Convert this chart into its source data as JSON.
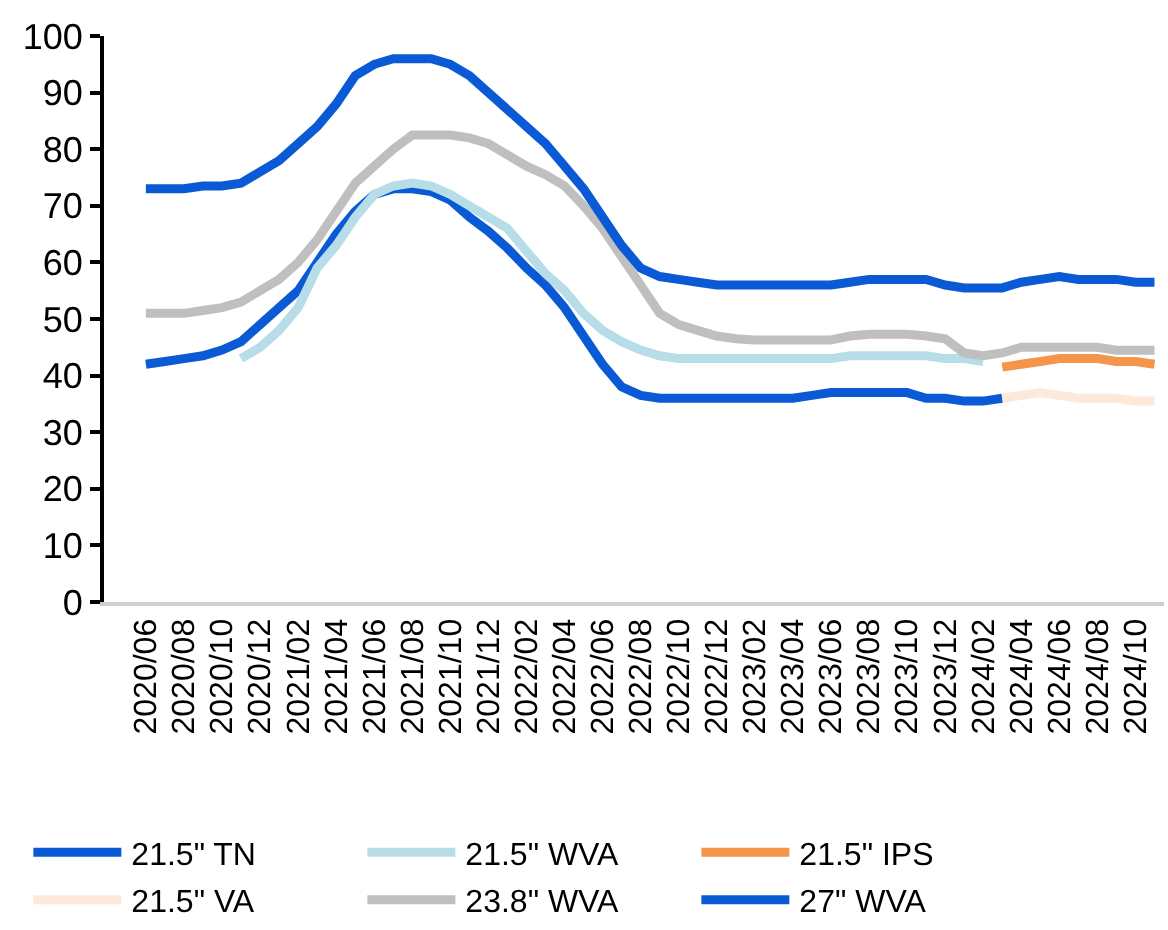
{
  "chart_data": {
    "type": "line",
    "categories": [
      "2020/06",
      null,
      "2020/08",
      null,
      "2020/10",
      null,
      "2020/12",
      null,
      "2021/02",
      null,
      "2021/04",
      null,
      "2021/06",
      null,
      "2021/08",
      null,
      "2021/10",
      null,
      "2021/12",
      null,
      "2022/02",
      null,
      "2022/04",
      null,
      "2022/06",
      null,
      "2022/08",
      null,
      "2022/10",
      null,
      "2022/12",
      null,
      "2023/02",
      null,
      "2023/04",
      null,
      "2023/06",
      null,
      "2023/08",
      null,
      "2023/10",
      null,
      "2023/12",
      null,
      "2024/02",
      null,
      "2024/04",
      null,
      "2024/06",
      null,
      "2024/08",
      null,
      "2024/10",
      null
    ],
    "series": [
      {
        "name": "21.5\" TN",
        "color": "#0a5ad6",
        "values": [
          42,
          42.5,
          43,
          43.5,
          44.5,
          46,
          49,
          52,
          55,
          60,
          65,
          69,
          72,
          73,
          73,
          72.5,
          71,
          68,
          65.5,
          62.5,
          59,
          56,
          52,
          47,
          42,
          38,
          36.5,
          36,
          36,
          36,
          36,
          36,
          36,
          36,
          36,
          36.5,
          37,
          37,
          37,
          37,
          37,
          36,
          36,
          35.5,
          35.5,
          36,
          null,
          null,
          null,
          null,
          null,
          null,
          null,
          null
        ]
      },
      {
        "name": "21.5\" WVA",
        "color": "#b7dde8",
        "values": [
          null,
          null,
          null,
          null,
          null,
          43,
          45,
          48,
          52,
          59,
          63,
          68,
          72,
          73.5,
          74,
          73.5,
          72,
          70,
          68,
          66,
          62,
          58,
          55,
          51,
          48,
          46,
          44.5,
          43.5,
          43,
          43,
          43,
          43,
          43,
          43,
          43,
          43,
          43,
          43.5,
          43.5,
          43.5,
          43.5,
          43.5,
          43,
          43,
          42.5,
          null,
          null,
          null,
          null,
          null,
          null,
          null,
          null,
          null
        ]
      },
      {
        "name": "21.5\" IPS",
        "color": "#f5954a",
        "values": [
          null,
          null,
          null,
          null,
          null,
          null,
          null,
          null,
          null,
          null,
          null,
          null,
          null,
          null,
          null,
          null,
          null,
          null,
          null,
          null,
          null,
          null,
          null,
          null,
          null,
          null,
          null,
          null,
          null,
          null,
          null,
          null,
          null,
          null,
          null,
          null,
          null,
          null,
          null,
          null,
          null,
          null,
          null,
          null,
          null,
          41.5,
          42,
          42.5,
          43,
          43,
          43,
          42.5,
          42.5,
          42
        ]
      },
      {
        "name": "21.5\" VA",
        "color": "#fde8da",
        "values": [
          null,
          null,
          null,
          null,
          null,
          null,
          null,
          null,
          null,
          null,
          null,
          null,
          null,
          null,
          null,
          null,
          null,
          null,
          null,
          null,
          null,
          null,
          null,
          null,
          null,
          null,
          null,
          null,
          null,
          null,
          null,
          null,
          null,
          null,
          null,
          null,
          null,
          null,
          null,
          null,
          null,
          null,
          null,
          null,
          null,
          36,
          36.5,
          37,
          36.5,
          36,
          36,
          36,
          35.5,
          35.5
        ]
      },
      {
        "name": "23.8\" WVA",
        "color": "#bfbfbf",
        "values": [
          51,
          51,
          51,
          51.5,
          52,
          53,
          55,
          57,
          60,
          64,
          69,
          74,
          77,
          80,
          82.5,
          82.5,
          82.5,
          82,
          81,
          79,
          77,
          75.5,
          73.5,
          70,
          66,
          61,
          56,
          51,
          49,
          48,
          47,
          46.5,
          46.3,
          46.3,
          46.3,
          46.3,
          46.3,
          47,
          47.3,
          47.3,
          47.3,
          47,
          46.5,
          44,
          43.5,
          44,
          45,
          45,
          45,
          45,
          45,
          44.5,
          44.5,
          44.5
        ]
      },
      {
        "name": "27\" WVA",
        "color": "#0a5ad6",
        "values": [
          73,
          73,
          73,
          73.5,
          73.5,
          74,
          76,
          78,
          81,
          84,
          88,
          93,
          95,
          96,
          96,
          96,
          95,
          93,
          90,
          87,
          84,
          81,
          77,
          73,
          68,
          63,
          59,
          57.5,
          57,
          56.5,
          56,
          56,
          56,
          56,
          56,
          56,
          56,
          56.5,
          57,
          57,
          57,
          57,
          56,
          55.5,
          55.5,
          55.5,
          56.5,
          57,
          57.5,
          57,
          57,
          57,
          56.5,
          56.5
        ]
      }
    ],
    "ylim": [
      0,
      100
    ],
    "yticks": [
      0,
      10,
      20,
      30,
      40,
      50,
      60,
      70,
      80,
      90,
      100
    ],
    "grid": false,
    "legend": "bottom",
    "marker": "none",
    "line_style": "solid"
  }
}
